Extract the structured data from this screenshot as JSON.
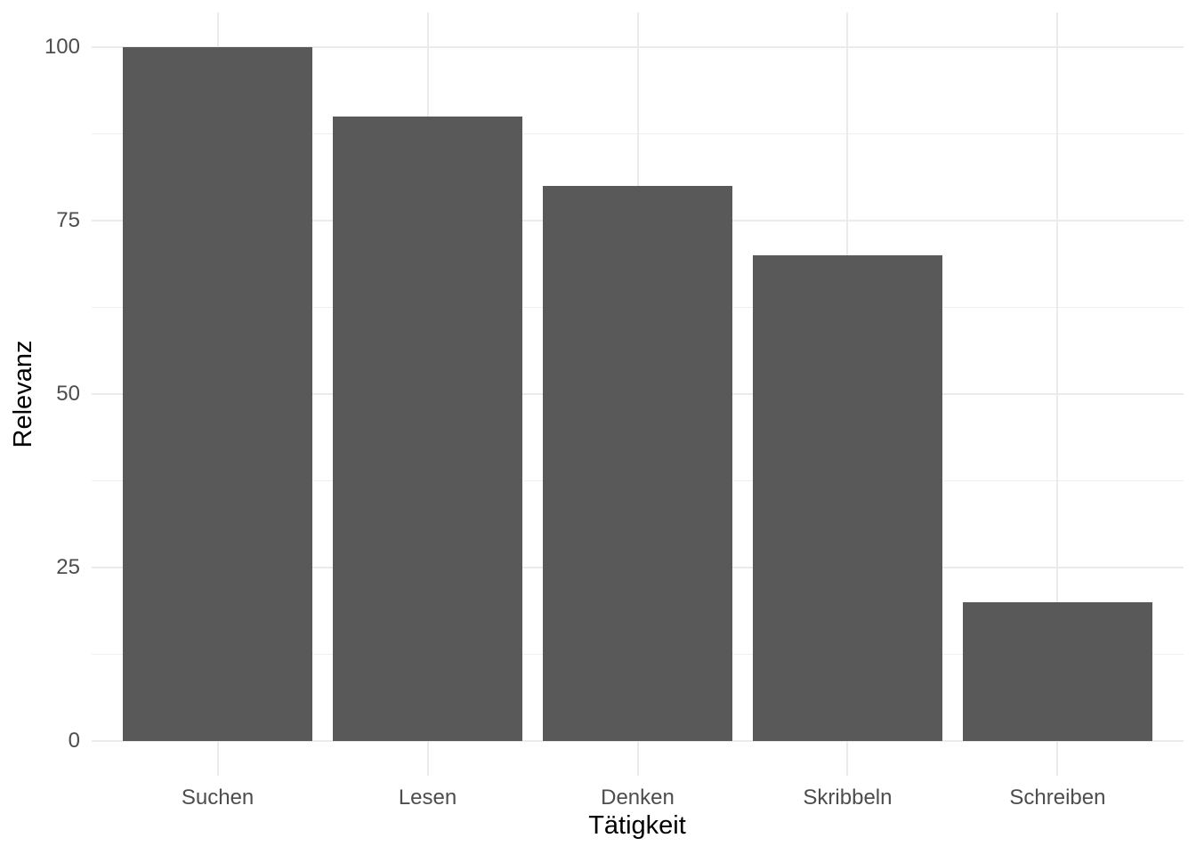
{
  "chart_data": {
    "type": "bar",
    "title": "",
    "categories": [
      "Suchen",
      "Lesen",
      "Denken",
      "Skribbeln",
      "Schreiben"
    ],
    "values": [
      100,
      90,
      80,
      70,
      20
    ],
    "xlabel": "Tätigkeit",
    "ylabel": "Relevanz",
    "ylim": [
      -5,
      105
    ],
    "yticks": [
      {
        "value": 0,
        "label": "0"
      },
      {
        "value": 25,
        "label": "25"
      },
      {
        "value": 50,
        "label": "50"
      },
      {
        "value": 75,
        "label": "75"
      },
      {
        "value": 100,
        "label": "100"
      }
    ],
    "yticks_minor": [
      12.5,
      37.5,
      62.5,
      87.5
    ],
    "grid": "major-and-minor, vertical lines at category centers",
    "legend": "none",
    "colors": {
      "bar_fill": "#595959",
      "grid_major": "#ebebeb",
      "grid_minor": "#efefef",
      "tick_label": "#4d4d4d",
      "axis_title": "#000000",
      "background": "#ffffff"
    }
  }
}
